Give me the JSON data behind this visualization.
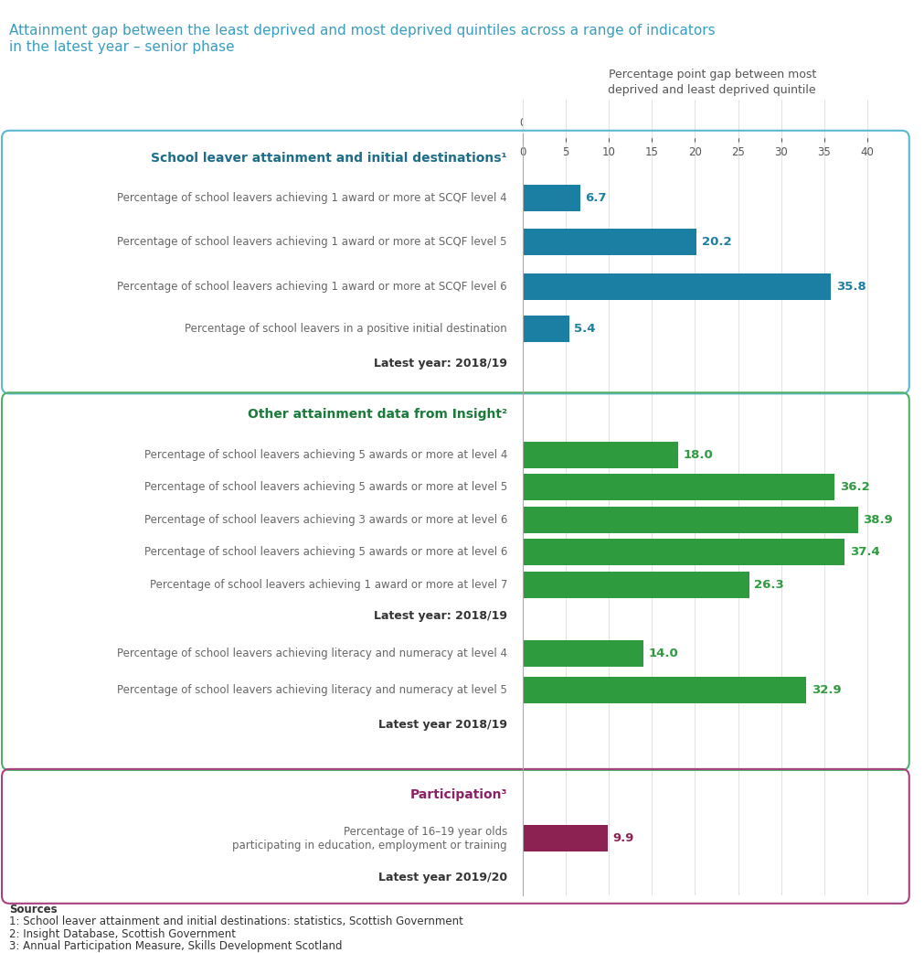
{
  "title_line1": "Attainment gap between the least deprived and most deprived quintiles across a range of indicators",
  "title_line2": "in the latest year – senior phase",
  "title_color": "#3a9dbf",
  "axis_label_line1": "Percentage point gap between most",
  "axis_label_line2": "deprived and least deprived quintile",
  "x_ticks": [
    0,
    5,
    10,
    15,
    20,
    25,
    30,
    35,
    40
  ],
  "xlim": [
    0,
    44
  ],
  "section1_title": "School leaver attainment and initial destinations¹",
  "section1_title_color": "#1b6d8a",
  "section1_color": "#1b7fa3",
  "section1_border": "#5ab8d0",
  "section1_items": [
    {
      "label": "Percentage of school leavers achieving 1 award or more at SCQF level 4",
      "value": 6.7
    },
    {
      "label": "Percentage of school leavers achieving 1 award or more at SCQF level 5",
      "value": 20.2
    },
    {
      "label": "Percentage of school leavers achieving 1 award or more at SCQF level 6",
      "value": 35.8
    },
    {
      "label": "Percentage of school leavers in a positive initial destination",
      "value": 5.4
    }
  ],
  "section1_year": "Latest year: 2018/19",
  "section2_title": "Other attainment data from Insight²",
  "section2_title_color": "#1a7a3a",
  "section2_color": "#2e9b3e",
  "section2_border": "#50b068",
  "section2a_items": [
    {
      "label": "Percentage of school leavers achieving 5 awards or more at level 4",
      "value": 18.0
    },
    {
      "label": "Percentage of school leavers achieving 5 awards or more at level 5",
      "value": 36.2
    },
    {
      "label": "Percentage of school leavers achieving 3 awards or more at level 6",
      "value": 38.9
    },
    {
      "label": "Percentage of school leavers achieving 5 awards or more at level 6",
      "value": 37.4
    },
    {
      "label": "Percentage of school leavers achieving 1 award or more at level 7",
      "value": 26.3
    }
  ],
  "section2a_year": "Latest year: 2018/19",
  "section2b_items": [
    {
      "label": "Percentage of school leavers achieving literacy and numeracy at level 4",
      "value": 14.0
    },
    {
      "label": "Percentage of school leavers achieving literacy and numeracy at level 5",
      "value": 32.9
    }
  ],
  "section2b_year": "Latest year 2018/19",
  "section3_title": "Participation³",
  "section3_title_color": "#8b2067",
  "section3_color": "#8b2252",
  "section3_border": "#a84080",
  "section3_items": [
    {
      "label": "Percentage of 16–19 year olds\nparticipating in education, employment or training",
      "value": 9.9
    }
  ],
  "section3_year": "Latest year 2019/20",
  "sources": [
    "Sources",
    "1: School leaver attainment and initial destinations: statistics, Scottish Government",
    "2: Insight Database, Scottish Government",
    "3: Annual Participation Measure, Skills Development Scotland"
  ],
  "label_fontsize": 8.5,
  "value_fontsize": 9.5,
  "section_title_fontsize": 10,
  "year_fontsize": 9,
  "source_fontsize": 8.5,
  "background_color": "#ffffff",
  "text_color": "#555555",
  "label_color": "#666666"
}
